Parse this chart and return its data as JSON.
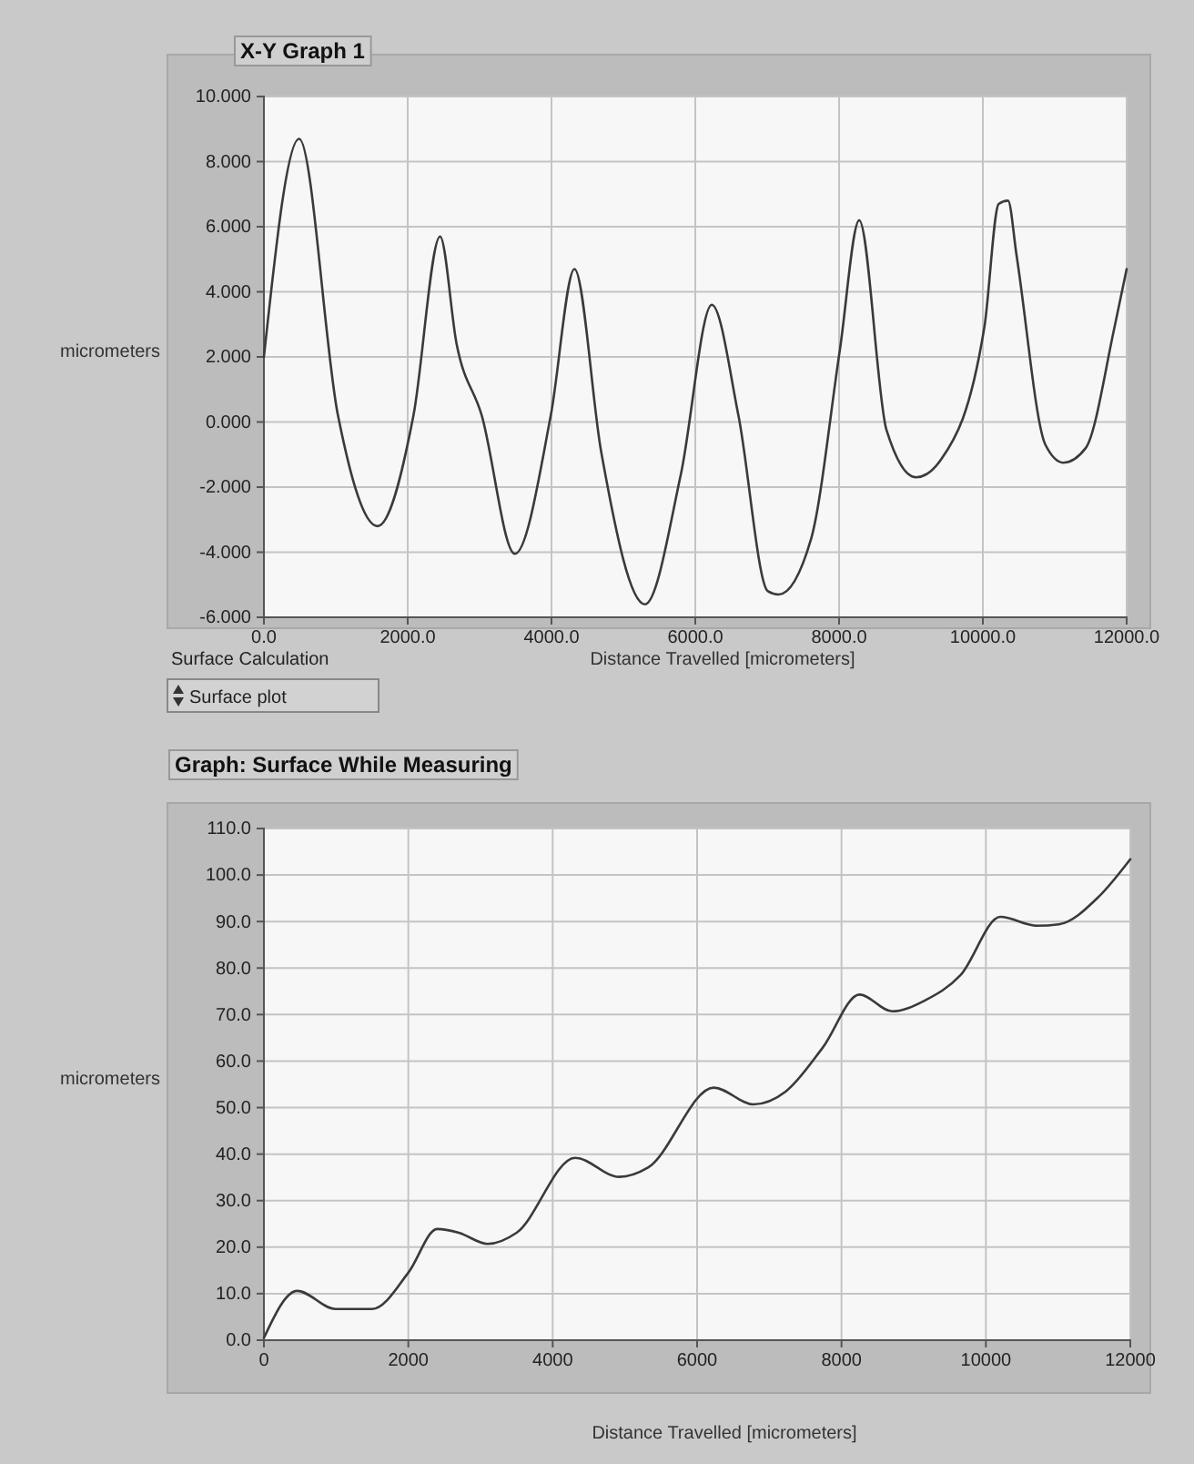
{
  "chart_data": [
    {
      "type": "line",
      "title": "X-Y Graph 1",
      "xlabel": "Distance Travelled [micrometers]",
      "ylabel": "micrometers",
      "xlim": [
        0,
        12000
      ],
      "ylim": [
        -6,
        10
      ],
      "xticks": [
        {
          "value": 0,
          "label": "0.0"
        },
        {
          "value": 2000,
          "label": "2000.0"
        },
        {
          "value": 4000,
          "label": "4000.0"
        },
        {
          "value": 6000,
          "label": "6000.0"
        },
        {
          "value": 8000,
          "label": "8000.0"
        },
        {
          "value": 10000,
          "label": "10000.0"
        },
        {
          "value": 12000,
          "label": "12000.0"
        }
      ],
      "yticks": [
        {
          "value": -6,
          "label": "-6.000"
        },
        {
          "value": -4,
          "label": "-4.000"
        },
        {
          "value": -2,
          "label": "-2.000"
        },
        {
          "value": 0,
          "label": "0.000"
        },
        {
          "value": 2,
          "label": "2.000"
        },
        {
          "value": 4,
          "label": "4.000"
        },
        {
          "value": 6,
          "label": "6.000"
        },
        {
          "value": 8,
          "label": "8.000"
        },
        {
          "value": 10,
          "label": "10.000"
        }
      ],
      "grid": true,
      "marker": "none",
      "line_style": "solid",
      "series": [
        {
          "color": "#3a3a3a",
          "x": [
            0,
            490,
            1030,
            1580,
            2080,
            2450,
            2680,
            3030,
            3490,
            3990,
            4320,
            4690,
            5300,
            5800,
            6230,
            6600,
            7010,
            7160,
            7610,
            8010,
            8280,
            8660,
            9070,
            9420,
            10020,
            10220,
            10350,
            10470,
            10870,
            11120,
            11430,
            11830,
            12000
          ],
          "values": [
            2.0,
            8.7,
            0.2,
            -3.2,
            0.2,
            5.7,
            2.4,
            0.2,
            -4.05,
            0.2,
            4.7,
            -0.9,
            -5.6,
            -1.6,
            3.6,
            0.2,
            -5.2,
            -5.3,
            -3.6,
            2.2,
            6.2,
            -0.25,
            -1.7,
            -1.15,
            2.9,
            6.7,
            6.8,
            5.1,
            -0.7,
            -1.25,
            -0.8,
            2.9,
            4.7
          ]
        }
      ]
    },
    {
      "type": "line",
      "title": "Graph: Surface While Measuring",
      "xlabel": "Distance Travelled [micrometers]",
      "ylabel": "micrometers",
      "annotations": [
        "Surface Calculation",
        "Surface plot"
      ],
      "xlim": [
        0,
        12000
      ],
      "ylim": [
        0,
        110
      ],
      "xticks": [
        0,
        2000,
        4000,
        6000,
        8000,
        10000,
        12000
      ],
      "yticks": [
        {
          "value": 0,
          "label": "0.0"
        },
        {
          "value": 10,
          "label": "10.0"
        },
        {
          "value": 20,
          "label": "20.0"
        },
        {
          "value": 30,
          "label": "30.0"
        },
        {
          "value": 40,
          "label": "40.0"
        },
        {
          "value": 50,
          "label": "50.0"
        },
        {
          "value": 60,
          "label": "60.0"
        },
        {
          "value": 70,
          "label": "70.0"
        },
        {
          "value": 80,
          "label": "80.0"
        },
        {
          "value": 90,
          "label": "90.0"
        },
        {
          "value": 100,
          "label": "100.0"
        },
        {
          "value": 110,
          "label": "110.0"
        }
      ],
      "grid": true,
      "marker": "none",
      "line_style": "solid",
      "series": [
        {
          "color": "#3a3a3a",
          "x": [
            0,
            460,
            990,
            1500,
            2000,
            2400,
            2700,
            3100,
            3500,
            4310,
            4920,
            5320,
            6230,
            6780,
            7230,
            7740,
            8250,
            8700,
            9150,
            9650,
            10200,
            10710,
            11010,
            11560,
            12000
          ],
          "values": [
            0.5,
            10.6,
            6.7,
            6.7,
            14.5,
            23.9,
            23.1,
            20.7,
            23.1,
            39.2,
            35.1,
            37.1,
            54.3,
            50.7,
            53.5,
            62.9,
            74.3,
            70.7,
            73,
            78.5,
            91,
            89.1,
            89.4,
            95.3,
            103.4
          ]
        }
      ]
    }
  ]
}
